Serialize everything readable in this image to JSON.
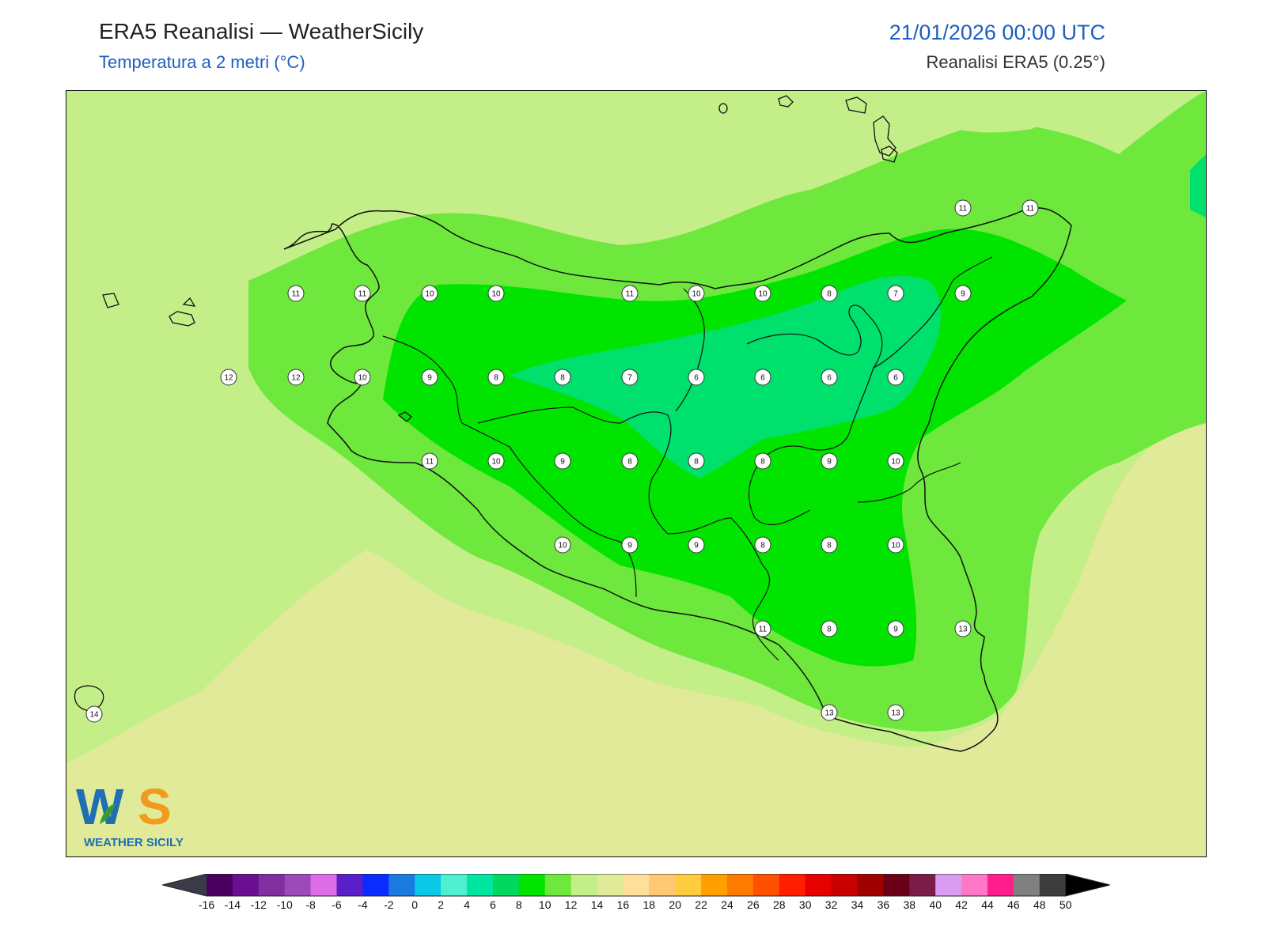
{
  "header": {
    "title": "ERA5 Reanalisi — WeatherSicily",
    "subtitle": "Temperatura a 2 metri (°C)",
    "datetime": "21/01/2026 00:00 UTC",
    "source": "Reanalisi ERA5 (0.25°)"
  },
  "logo": {
    "monogram": "WS",
    "text": "WEATHER SICILY",
    "colors": {
      "w": "#1f6fb5",
      "s": "#f29a1e",
      "leaf": "#3a9a3a"
    }
  },
  "colorbar": {
    "ticks": [
      "-16",
      "-14",
      "-12",
      "-10",
      "-8",
      "-6",
      "-4",
      "-2",
      "0",
      "2",
      "4",
      "6",
      "8",
      "10",
      "12",
      "14",
      "16",
      "18",
      "20",
      "22",
      "24",
      "26",
      "28",
      "30",
      "32",
      "34",
      "36",
      "38",
      "40",
      "42",
      "44",
      "46",
      "48",
      "50"
    ],
    "colors": [
      "#4a0060",
      "#6a0f8f",
      "#7f2fa0",
      "#9b4ab8",
      "#dd6ee8",
      "#5a1fc8",
      "#0a2cff",
      "#1a7ae0",
      "#0ac8e6",
      "#4ff0d0",
      "#00e6a0",
      "#00d860",
      "#00e400",
      "#6ee83c",
      "#c4ee88",
      "#e0ea98",
      "#ffe09a",
      "#ffc872",
      "#ffcc40",
      "#ffa000",
      "#ff7a00",
      "#ff5000",
      "#ff1e00",
      "#e60000",
      "#c80000",
      "#a00000",
      "#6a0018",
      "#7a1c48",
      "#d89cf0",
      "#ff78c8",
      "#ff1e8c",
      "#808080",
      "#3c3c3c"
    ],
    "under_color": "#3a3a48",
    "over_color": "#000000"
  },
  "map": {
    "fill_levels": {
      "6": "#00e06c",
      "8": "#00e400",
      "10": "#6ee83c",
      "12": "#c4ee88",
      "14": "#e0ea98"
    },
    "stations": [
      {
        "v": "11"
      },
      {
        "v": "11"
      },
      {
        "v": "10"
      },
      {
        "v": "10"
      },
      {
        "v": "11"
      },
      {
        "v": "10"
      },
      {
        "v": "10"
      },
      {
        "v": "8"
      },
      {
        "v": "7"
      },
      {
        "v": "9"
      },
      {
        "v": "12"
      },
      {
        "v": "12"
      },
      {
        "v": "10"
      },
      {
        "v": "9"
      },
      {
        "v": "8"
      },
      {
        "v": "8"
      },
      {
        "v": "7"
      },
      {
        "v": "6"
      },
      {
        "v": "6"
      },
      {
        "v": "6"
      },
      {
        "v": "6"
      },
      {
        "v": "11"
      },
      {
        "v": "10"
      },
      {
        "v": "9"
      },
      {
        "v": "8"
      },
      {
        "v": "8"
      },
      {
        "v": "8"
      },
      {
        "v": "9"
      },
      {
        "v": "10"
      },
      {
        "v": "10"
      },
      {
        "v": "9"
      },
      {
        "v": "9"
      },
      {
        "v": "8"
      },
      {
        "v": "8"
      },
      {
        "v": "10"
      },
      {
        "v": "11"
      },
      {
        "v": "8"
      },
      {
        "v": "9"
      },
      {
        "v": "13"
      },
      {
        "v": "13"
      },
      {
        "v": "13"
      },
      {
        "v": "11"
      },
      {
        "v": "11"
      },
      {
        "v": "14"
      }
    ]
  }
}
